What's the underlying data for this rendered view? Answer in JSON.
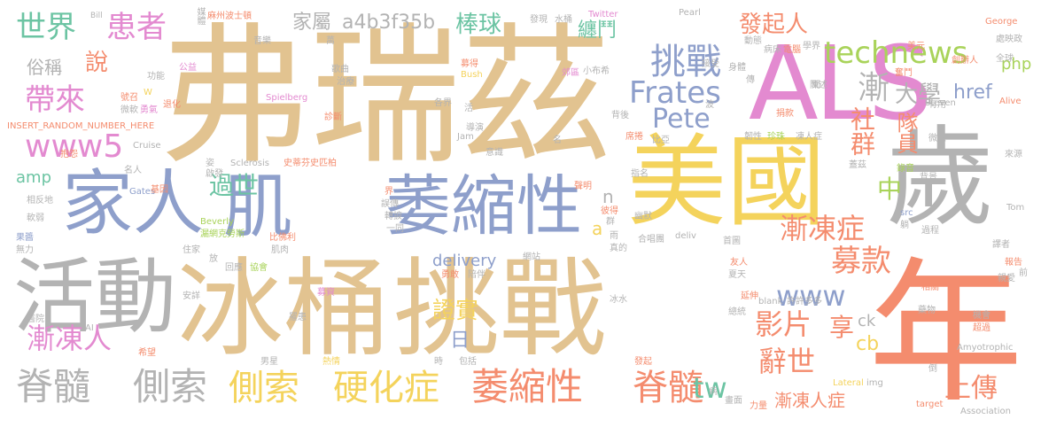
{
  "palette": {
    "tan": "#e2c390",
    "blue": "#8e9fcb",
    "yellow": "#f4d35c",
    "pink": "#e38ad0",
    "orange": "#f48c6e",
    "gray": "#b3b3b3",
    "green": "#6cc4a3",
    "lime": "#a9d35a"
  },
  "words": {
    "w01": "弗瑞茲",
    "w02": "ALS",
    "w03": "美國",
    "w04": "歲",
    "w05": "年",
    "w06": "冰桶",
    "w07": "挑戰",
    "w08": "家人",
    "w09": "肌",
    "w10": "萎縮性",
    "w11": "活動",
    "w12": "脊髓",
    "w13": "側索",
    "w14": "側索",
    "w15": "硬化症",
    "w16": "萎縮性",
    "w17": "脊髓",
    "w18": "technews",
    "w19": "挑戰",
    "w20": "Frates",
    "w21": "Pete",
    "w22": "www5",
    "w23": "過世",
    "w24": "世界",
    "w25": "患者",
    "w26": "家屬",
    "w27": "a4b3f35b",
    "w28": "棒球",
    "w29": "發起人",
    "w30": "纏鬥",
    "w31": "漸",
    "w32": "大學",
    "w33": "社群",
    "w34": "隊員",
    "w35": "漸凍症",
    "w36": "募款",
    "w37": "www",
    "w38": "影片",
    "w39": "享",
    "w40": "辭世",
    "w41": "上傳",
    "w42": "漸凍人症",
    "w43": "漸凍人",
    "w44": "帶來",
    "w45": "說",
    "w46": "俗稱",
    "w47": "amp",
    "w48": "delivery",
    "w49": "證實",
    "w50": "日",
    "w51": "tw",
    "w52": "中",
    "w53": "href",
    "w54": "php",
    "w55": "ck",
    "w56": "cb",
    "w57": "n",
    "w58": "a",
    "w59": "INSERT_RANDOM_NUMBER_HERE",
    "w60": "Twitter",
    "w61": "Bill",
    "w62": "麻州波士頓",
    "w63": "發現",
    "w64": "水桶",
    "w65": "Pearl",
    "w66": "George",
    "w67": "處映政",
    "w68": "學界",
    "w69": "美元",
    "w70": "全球",
    "w71": "Spielberg",
    "w72": "Steven",
    "w73": "Alive",
    "w74": "Sclerosis",
    "w75": "史蒂芬史匹柏",
    "w76": "Amyotrophic",
    "w77": "Lateral",
    "w78": "Association",
    "w79": "Beverly",
    "w80": "Gates",
    "w81": "Cruise",
    "w82": "Tom",
    "w83": "blank",
    "w84": "許許多多",
    "w85": "img",
    "w86": "src",
    "w87": "target",
    "w88": "deliv",
    "w89": "Bush",
    "w90": "Jam",
    "w91": "小布希",
    "w92": "媒體",
    "w93": "公益",
    "w94": "功能",
    "w95": "號召",
    "w96": "微軟",
    "w97": "勇氣",
    "w98": "名人",
    "w99": "抱怨",
    "w100": "相反地",
    "w101": "軟弱",
    "w102": "果醬",
    "w103": "無力",
    "w104": "醫院",
    "w105": "希望",
    "w106": "男星",
    "w107": "熱情",
    "w108": "時",
    "w109": "包括",
    "w110": "發起",
    "w111": "畫面",
    "w112": "力量",
    "w113": "報告",
    "w114": "譯者",
    "w115": "機會",
    "w116": "超過",
    "w117": "藥物",
    "w118": "總統",
    "w119": "延伸",
    "w120": "夏天",
    "w121": "友人",
    "w122": "首圖",
    "w123": "合唱團",
    "w124": "網站",
    "w125": "勇敢",
    "w126": "陪伴",
    "w127": "冰水",
    "w128": "募資",
    "w129": "罹患",
    "w130": "安詳",
    "w131": "協會",
    "w132": "回應",
    "w133": "肌肉",
    "w134": "比佛利",
    "w135": "漏網克勞斯",
    "w136": "住家",
    "w137": "放",
    "w138": "一同",
    "w139": "轉捩",
    "w140": "聲明",
    "w141": "指名",
    "w142": "席捲",
    "w143": "比亞",
    "w144": "珍珠",
    "w145": "凍人症",
    "w146": "蓋茲",
    "w147": "捐款",
    "w148": "病床",
    "w149": "電腦",
    "w150": "接受",
    "w151": "身體",
    "w152": "創辦人",
    "w153": "奮鬥",
    "w154": "有用",
    "w155": "聞",
    "w156": "動態",
    "w157": "微人",
    "w158": "傳",
    "w159": "背後",
    "w160": "韌性",
    "w161": "來源",
    "w162": "錄音",
    "w163": "背景",
    "w164": "前",
    "w165": "親愛",
    "w166": "過程",
    "w167": "躺",
    "w168": "陳述",
    "w169": "萬",
    "w170": "音樂",
    "w171": "歌曲",
    "w172": "治療",
    "w173": "診斷",
    "w174": "退化",
    "w175": "基因",
    "w176": "姿",
    "w177": "啟發",
    "w178": "界",
    "w179": "誤傳",
    "w180": "募得",
    "w181": "郊區",
    "w182": "各界",
    "w183": "活",
    "w184": "導演",
    "w185": "名",
    "w186": "意識",
    "w187": "彼得",
    "w188": "群",
    "w189": "幽默",
    "w190": "病",
    "w191": "真的",
    "w192": "倒",
    "w193": "雨",
    "w194": "相關",
    "w195": "波",
    "w196": "W",
    "w197": "AI"
  }
}
